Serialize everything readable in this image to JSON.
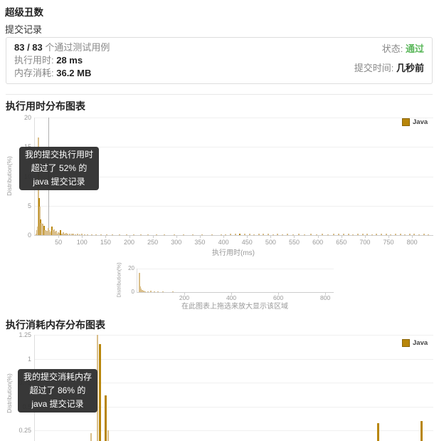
{
  "page": {
    "problem_title": "超级丑数",
    "section_heading": "提交记录"
  },
  "result_card": {
    "passed": "83 / 83",
    "passed_suffix": " 个通过测试用例",
    "runtime_label": "执行用时: ",
    "runtime_value": "28 ms",
    "memory_label": "内存消耗: ",
    "memory_value": "36.2 MB",
    "status_label": "状态: ",
    "status_value": "通过",
    "status_color": "#5cb85c",
    "submitted_label": "提交时间: ",
    "submitted_value": "几秒前"
  },
  "chart_data": [
    {
      "id": "runtime",
      "type": "bar",
      "title": "执行用时分布图表",
      "xlabel": "执行用时(ms)",
      "ylabel": "Distribution(%)",
      "legend": [
        {
          "label": "Java",
          "color": "#b8860b"
        }
      ],
      "xlim": [
        0,
        845
      ],
      "ylim": [
        0,
        20
      ],
      "yticks": [
        0,
        5,
        10,
        15,
        20
      ],
      "xticks": [
        50,
        100,
        150,
        200,
        250,
        300,
        350,
        400,
        450,
        500,
        550,
        600,
        650,
        700,
        750,
        800
      ],
      "marker_x": 28,
      "colors": {
        "light": "#d9be8a",
        "dark": "#b8860b"
      },
      "annotation": {
        "lines": [
          "我的提交执行用时",
          "超过了 52% 的",
          "java 提交记录"
        ]
      },
      "bars": [
        [
          3,
          0.3
        ],
        [
          5,
          0.8
        ],
        [
          6,
          1.5
        ],
        [
          7,
          3.0,
          "d"
        ],
        [
          8,
          16.6
        ],
        [
          9,
          6.3,
          "d"
        ],
        [
          10,
          4.9
        ],
        [
          11,
          3.3
        ],
        [
          12,
          2.7,
          "d"
        ],
        [
          13,
          2.1
        ],
        [
          14,
          1.7
        ],
        [
          15,
          1.3
        ],
        [
          16,
          2.0
        ],
        [
          17,
          1.0
        ],
        [
          18,
          0.8
        ],
        [
          19,
          0.6
        ],
        [
          20,
          1.6,
          "d"
        ],
        [
          21,
          0.8
        ],
        [
          22,
          0.5
        ],
        [
          23,
          0.9
        ],
        [
          24,
          0.5
        ],
        [
          25,
          0.35
        ],
        [
          26,
          0.7
        ],
        [
          27,
          0.3
        ],
        [
          28,
          1.2
        ],
        [
          30,
          0.9
        ],
        [
          32,
          0.5
        ],
        [
          34,
          0.7
        ],
        [
          36,
          1.5,
          "d"
        ],
        [
          38,
          0.8
        ],
        [
          40,
          1.0
        ],
        [
          42,
          0.6
        ],
        [
          44,
          0.4
        ],
        [
          46,
          0.7
        ],
        [
          48,
          0.3
        ],
        [
          50,
          0.5
        ],
        [
          52,
          0.4
        ],
        [
          55,
          0.9,
          "d"
        ],
        [
          58,
          0.3
        ],
        [
          60,
          0.5
        ],
        [
          63,
          0.25
        ],
        [
          66,
          0.4
        ],
        [
          70,
          0.3
        ],
        [
          74,
          0.2
        ],
        [
          78,
          0.3
        ],
        [
          82,
          0.2
        ],
        [
          86,
          0.15
        ],
        [
          90,
          0.25
        ],
        [
          95,
          0.15
        ],
        [
          100,
          0.2
        ],
        [
          106,
          0.12
        ],
        [
          112,
          0.15
        ],
        [
          120,
          0.1
        ],
        [
          130,
          0.15
        ],
        [
          140,
          0.1
        ],
        [
          152,
          0.12
        ],
        [
          165,
          0.1
        ],
        [
          180,
          0.12
        ],
        [
          195,
          0.1
        ],
        [
          210,
          0.08
        ],
        [
          225,
          0.1
        ],
        [
          240,
          0.08
        ],
        [
          258,
          0.1
        ],
        [
          275,
          0.08
        ],
        [
          295,
          0.1
        ],
        [
          315,
          0.08
        ],
        [
          335,
          0.1
        ],
        [
          355,
          0.08
        ],
        [
          375,
          0.1
        ],
        [
          395,
          0.12
        ],
        [
          405,
          0.18
        ],
        [
          415,
          0.25
        ],
        [
          425,
          0.2
        ],
        [
          435,
          0.3,
          "d"
        ],
        [
          445,
          0.2
        ],
        [
          455,
          0.25
        ],
        [
          465,
          0.15
        ],
        [
          475,
          0.3
        ],
        [
          485,
          0.2
        ],
        [
          495,
          0.25
        ],
        [
          505,
          0.15
        ],
        [
          515,
          0.2
        ],
        [
          525,
          0.15
        ],
        [
          535,
          0.25
        ],
        [
          548,
          0.15
        ],
        [
          560,
          0.2
        ],
        [
          572,
          0.15
        ],
        [
          585,
          0.2
        ],
        [
          598,
          0.15
        ],
        [
          610,
          0.25
        ],
        [
          622,
          0.15
        ],
        [
          634,
          0.2
        ],
        [
          645,
          0.3
        ],
        [
          655,
          0.2
        ],
        [
          665,
          0.25
        ],
        [
          675,
          0.15
        ],
        [
          685,
          0.3
        ],
        [
          695,
          0.2
        ],
        [
          705,
          0.25
        ],
        [
          715,
          0.15
        ],
        [
          725,
          0.2
        ],
        [
          735,
          0.3
        ],
        [
          745,
          0.2
        ],
        [
          755,
          0.15
        ],
        [
          765,
          0.25
        ],
        [
          775,
          0.2
        ],
        [
          785,
          0.15
        ],
        [
          795,
          0.2
        ],
        [
          805,
          0.25
        ],
        [
          815,
          0.15
        ],
        [
          825,
          0.2
        ],
        [
          835,
          0.15
        ]
      ]
    },
    {
      "id": "overview",
      "type": "bar",
      "title": "",
      "xlabel": "",
      "ylabel": "Distribution(%)",
      "caption": "在此图表上拖选来放大显示该区域",
      "xlim": [
        0,
        836
      ],
      "ylim": [
        0,
        20
      ],
      "yticks": [
        0,
        20
      ],
      "xticks": [
        200,
        400,
        600,
        800
      ],
      "colors": {
        "light": "#d9be8a",
        "dark": "#b8860b"
      },
      "bars": [
        [
          8,
          16.6
        ],
        [
          12,
          5
        ],
        [
          16,
          3
        ],
        [
          20,
          2
        ],
        [
          26,
          1.2
        ],
        [
          34,
          0.8
        ],
        [
          44,
          0.6
        ],
        [
          58,
          1.5
        ],
        [
          72,
          0.6
        ],
        [
          88,
          0.4
        ],
        [
          110,
          0.3
        ],
        [
          150,
          0.2
        ]
      ]
    },
    {
      "id": "memory",
      "type": "bar",
      "title": "执行消耗内存分布图表",
      "xlabel": "",
      "ylabel": "Distribution(%)",
      "legend": [
        {
          "label": "Java",
          "color": "#b8860b"
        }
      ],
      "xlim": [
        0,
        1
      ],
      "ylim": [
        0,
        1.25
      ],
      "yticks": [
        0.25,
        0.5,
        0.75,
        1,
        1.25
      ],
      "xticks": [],
      "colors": {
        "light": "#d9be8a",
        "dark": "#b8860b"
      },
      "annotation": {
        "lines": [
          "我的提交消耗内存",
          "超过了 86% 的",
          "java 提交记录"
        ]
      },
      "bars": [
        [
          0.141,
          0.22
        ],
        [
          0.158,
          1.25
        ],
        [
          0.163,
          1.15,
          "d",
          3
        ],
        [
          0.178,
          0.62,
          "d",
          3
        ],
        [
          0.184,
          0.25
        ],
        [
          0.486,
          0.1
        ],
        [
          0.689,
          0.1
        ],
        [
          0.861,
          0.33,
          "d",
          3
        ],
        [
          0.97,
          0.35,
          "d",
          3
        ]
      ]
    }
  ]
}
